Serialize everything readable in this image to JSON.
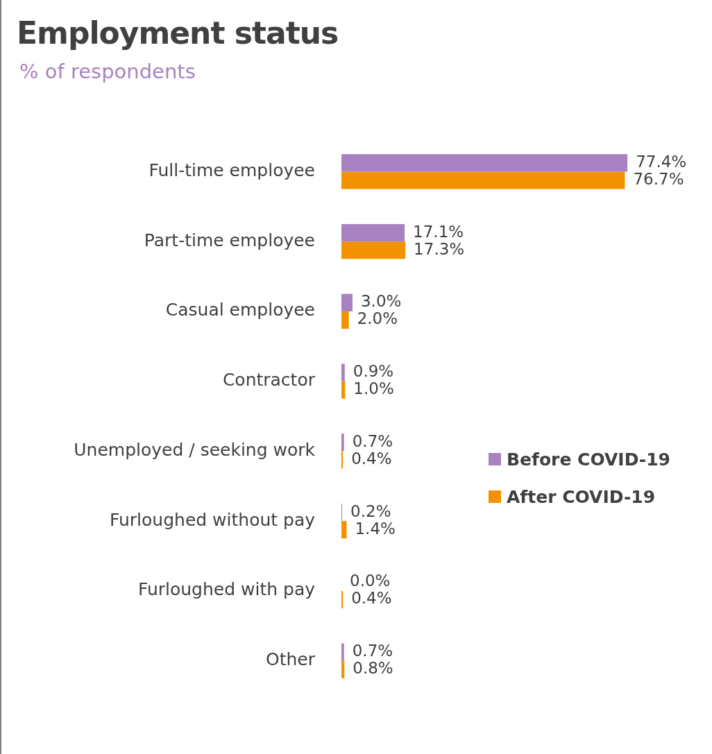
{
  "chart_data": {
    "type": "bar",
    "orientation": "horizontal",
    "title": "Employment status",
    "subtitle": "% of respondents",
    "categories": [
      "Full-time employee",
      "Part-time employee",
      "Casual employee",
      "Contractor",
      "Unemployed / seeking work",
      "Furloughed without pay",
      "Furloughed with pay",
      "Other"
    ],
    "series": [
      {
        "name": "Before COVID-19",
        "color": "#a882c0",
        "values": [
          77.4,
          17.1,
          3.0,
          0.9,
          0.7,
          0.2,
          0.0,
          0.7
        ],
        "value_labels": [
          "77.4%",
          "17.1%",
          "3.0%",
          "0.9%",
          "0.7%",
          "0.2%",
          "0.0%",
          "0.7%"
        ]
      },
      {
        "name": "After COVID-19",
        "color": "#f39200",
        "values": [
          76.7,
          17.3,
          2.0,
          1.0,
          0.4,
          1.4,
          0.4,
          0.8
        ],
        "value_labels": [
          "76.7%",
          "17.3%",
          "2.0%",
          "1.0%",
          "0.4%",
          "1.4%",
          "0.4%",
          "0.8%"
        ]
      }
    ],
    "legend": "right"
  }
}
